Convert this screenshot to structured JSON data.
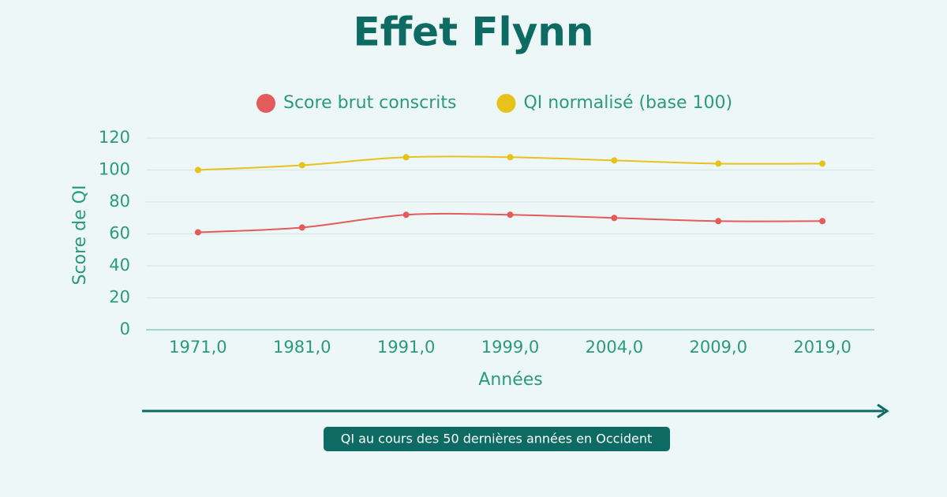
{
  "chart_data": {
    "type": "line",
    "title": "Effet Flynn",
    "x_label": "Années",
    "y_label": "Score de QI",
    "categories": [
      "1971,0",
      "1981,0",
      "1991,0",
      "1999,0",
      "2004,0",
      "2009,0",
      "2019,0"
    ],
    "series": [
      {
        "name": "Score brut conscrits",
        "color": "#e35b5b",
        "values": [
          61,
          64,
          72,
          72,
          70,
          68,
          68
        ]
      },
      {
        "name": "QI normalisé (base 100)",
        "color": "#e8c21a",
        "values": [
          100,
          103,
          108,
          108,
          106,
          104,
          104
        ]
      }
    ],
    "ylim": [
      0,
      120
    ],
    "yticks": [
      0,
      20,
      40,
      60,
      80,
      100,
      120
    ],
    "grid": true,
    "caption": "QI au cours des 50 dernières années en Occident"
  }
}
